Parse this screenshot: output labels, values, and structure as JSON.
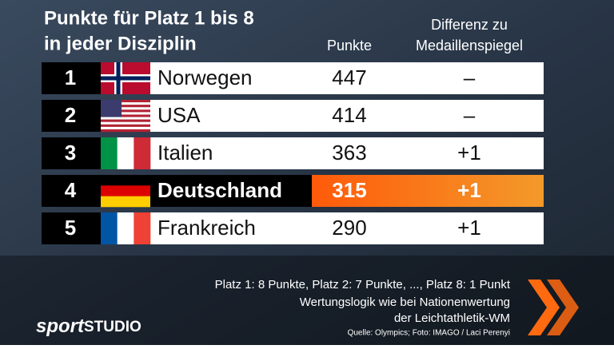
{
  "header": {
    "title": [
      "Punkte für Platz 1 bis 8",
      "in jeder Disziplin"
    ]
  },
  "table": {
    "columns": {
      "points": "Punkte",
      "difference": [
        "Differenz zu",
        "Medaillenspiegel"
      ]
    },
    "rows": [
      [
        "1",
        "Norwegen",
        "447",
        "–"
      ],
      [
        "2",
        "USA",
        "414",
        "–"
      ],
      [
        "3",
        "Italien",
        "363",
        "+1"
      ],
      [
        "4",
        "Deutschland",
        "315",
        "+1"
      ],
      [
        "5",
        "Frankreich",
        "290",
        "+1"
      ]
    ]
  },
  "footer": {
    "notes": [
      "Platz 1: 8 Punkte, Platz 2: 7 Punkte, ..., Platz 8: 1 Punkt",
      "Wertungslogik wie bei Nationenwertung",
      "der Leichtathletik-WM"
    ],
    "source": "Quelle: Olympics; Foto: IMAGO / Laci Perenyi",
    "logo": {
      "sport": "sport",
      "studio": "STUDIO"
    }
  }
}
